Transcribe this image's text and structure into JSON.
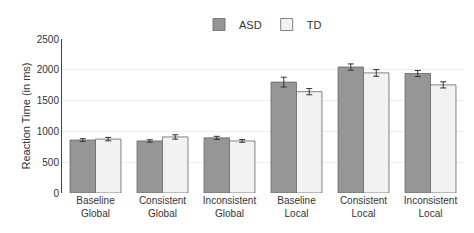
{
  "chart_data": {
    "type": "bar",
    "categories": [
      "Baseline\nGlobal",
      "Consistent\nGlobal",
      "Inconsistent\nGlobal",
      "Baseline\nLocal",
      "Consistent\nLocal",
      "Inconsistent\nLocal"
    ],
    "series": [
      {
        "name": "ASD",
        "color": "#969696",
        "values": [
          860,
          845,
          895,
          1800,
          2045,
          1940
        ],
        "errors": [
          22,
          20,
          25,
          80,
          50,
          50
        ]
      },
      {
        "name": "TD",
        "color": "#f2f2f2",
        "values": [
          875,
          910,
          845,
          1645,
          1950,
          1755
        ],
        "errors": [
          28,
          35,
          22,
          50,
          55,
          50
        ]
      }
    ],
    "ylabel": "Reaction Time (in ms)",
    "ylim": [
      0,
      2500
    ],
    "yticks": [
      0,
      500,
      1000,
      1500,
      2000,
      2500
    ],
    "grid": true,
    "legend": "top"
  }
}
